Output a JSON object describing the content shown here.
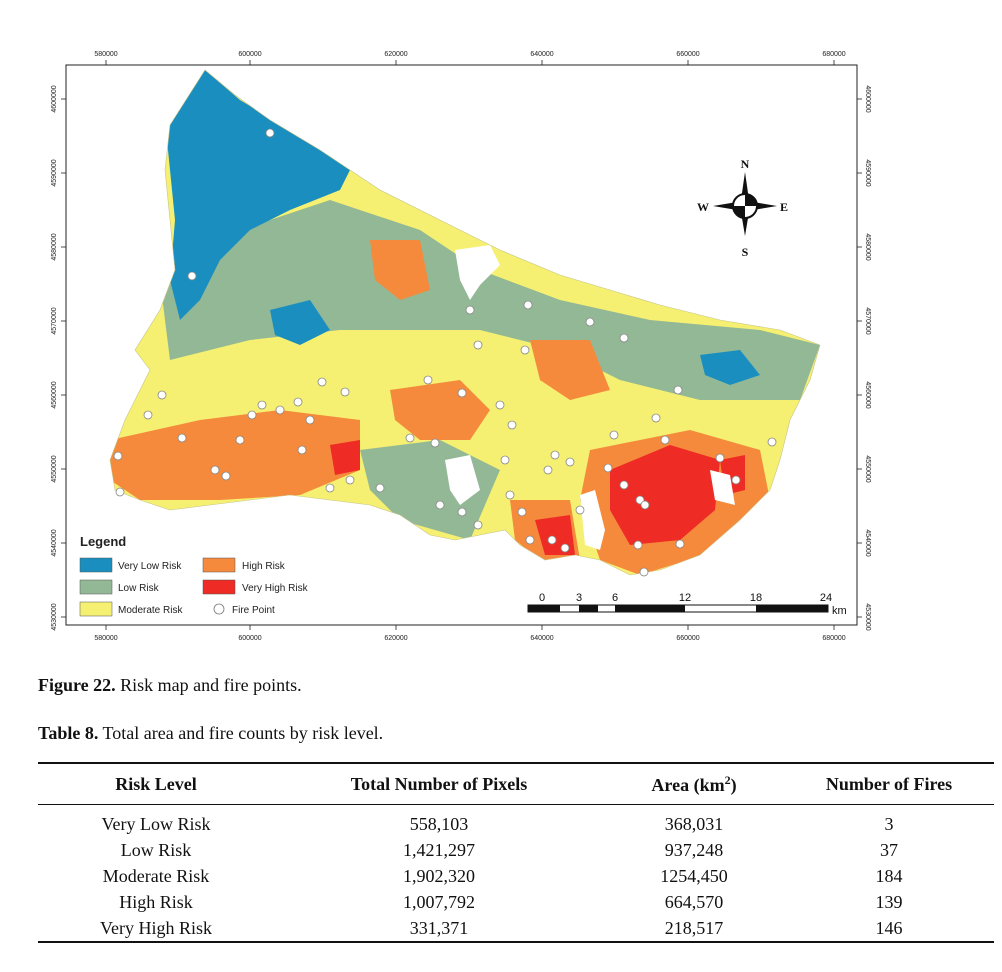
{
  "map": {
    "x_ticks": [
      "580000",
      "600000",
      "620000",
      "640000",
      "660000",
      "680000"
    ],
    "y_ticks": [
      "4600000",
      "4590000",
      "4580000",
      "4570000",
      "4560000",
      "4550000",
      "4540000",
      "4530000"
    ],
    "legend": {
      "title": "Legend",
      "items": [
        {
          "label": "Very Low Risk",
          "color": "#1a8fbf"
        },
        {
          "label": "High Risk",
          "color": "#f58a3c"
        },
        {
          "label": "Low Risk",
          "color": "#93b896"
        },
        {
          "label": "Very High Risk",
          "color": "#ee2b24"
        },
        {
          "label": "Moderate Risk",
          "color": "#f5f071"
        },
        {
          "label": "Fire Point",
          "color": "#ffffff"
        }
      ]
    },
    "compass": {
      "n": "N",
      "s": "S",
      "e": "E",
      "w": "W"
    },
    "scale_bar": {
      "labels": [
        "0",
        "3",
        "6",
        "12",
        "18",
        "24"
      ],
      "unit": "km"
    }
  },
  "figure_caption": {
    "label": "Figure 22.",
    "text": "Risk map and fire points."
  },
  "table_caption": {
    "label": "Table 8.",
    "text": "Total area and fire counts by risk level."
  },
  "table": {
    "headers": [
      "Risk Level",
      "Total Number of Pixels",
      "Area (km",
      "2",
      ")",
      "Number of Fires"
    ],
    "rows": [
      [
        "Very Low Risk",
        "558,103",
        "368,031",
        "3"
      ],
      [
        "Low Risk",
        "1,421,297",
        "937,248",
        "37"
      ],
      [
        "Moderate Risk",
        "1,902,320",
        "1254,450",
        "184"
      ],
      [
        "High Risk",
        "1,007,792",
        "664,570",
        "139"
      ],
      [
        "Very High Risk",
        "331,371",
        "218,517",
        "146"
      ]
    ]
  }
}
